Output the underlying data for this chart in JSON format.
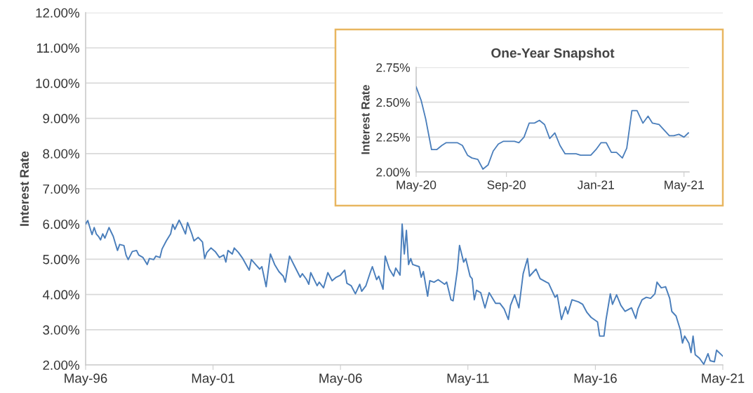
{
  "chart_data": [
    {
      "type": "line",
      "ylabel": "Interest Rate",
      "grid": "y",
      "marker": "none",
      "line_style": "solid",
      "xlim": [
        "1996-05",
        "2021-05"
      ],
      "ylim": [
        2,
        12
      ],
      "xticks": [
        {
          "value": "1996-05",
          "label": "May-96"
        },
        {
          "value": "2001-05",
          "label": "May-01"
        },
        {
          "value": "2006-05",
          "label": "May-06"
        },
        {
          "value": "2011-05",
          "label": "May-11"
        },
        {
          "value": "2016-05",
          "label": "May-16"
        },
        {
          "value": "2021-05",
          "label": "May-21"
        }
      ],
      "yticks": [
        {
          "value": 2,
          "label": "2.00%"
        },
        {
          "value": 3,
          "label": "3.00%"
        },
        {
          "value": 4,
          "label": "4.00%"
        },
        {
          "value": 5,
          "label": "5.00%"
        },
        {
          "value": 6,
          "label": "6.00%"
        },
        {
          "value": 7,
          "label": "7.00%"
        },
        {
          "value": 8,
          "label": "8.00%"
        },
        {
          "value": 9,
          "label": "9.00%"
        },
        {
          "value": 10,
          "label": "10.00%"
        },
        {
          "value": 11,
          "label": "11.00%"
        },
        {
          "value": 12,
          "label": "12.00%"
        }
      ],
      "x": [
        "1996-05",
        "1996-06",
        "1996-07",
        "1996-08",
        "1996-09",
        "1996-10",
        "1996-11",
        "1996-12",
        "1997-01",
        "1997-02",
        "1997-04",
        "1997-06",
        "1997-07",
        "1997-08",
        "1997-09",
        "1997-11",
        "1997-12",
        "1998-01",
        "1998-03",
        "1998-05",
        "1998-06",
        "1998-08",
        "1998-10",
        "1998-11",
        "1999-01",
        "1999-02",
        "1999-04",
        "1999-05",
        "1999-07",
        "1999-09",
        "1999-10",
        "1999-11",
        "2000-01",
        "2000-02",
        "2000-04",
        "2000-05",
        "2000-07",
        "2000-08",
        "2000-10",
        "2000-12",
        "2001-01",
        "2001-02",
        "2001-04",
        "2001-06",
        "2001-08",
        "2001-10",
        "2001-11",
        "2001-12",
        "2002-02",
        "2002-03",
        "2002-05",
        "2002-07",
        "2002-10",
        "2002-11",
        "2003-01",
        "2003-03",
        "2003-04",
        "2003-06",
        "2003-08",
        "2003-10",
        "2003-12",
        "2004-02",
        "2004-03",
        "2004-05",
        "2004-07",
        "2004-10",
        "2004-11",
        "2005-01",
        "2005-02",
        "2005-03",
        "2005-06",
        "2005-07",
        "2005-09",
        "2005-11",
        "2006-01",
        "2006-03",
        "2006-05",
        "2006-07",
        "2006-08",
        "2006-10",
        "2006-12",
        "2007-02",
        "2007-03",
        "2007-05",
        "2007-07",
        "2007-08",
        "2007-10",
        "2007-11",
        "2008-01",
        "2008-02",
        "2008-04",
        "2008-06",
        "2008-07",
        "2008-09",
        "2008-10",
        "2008-11",
        "2008-12",
        "2009-01",
        "2009-02",
        "2009-03",
        "2009-06",
        "2009-07",
        "2009-08",
        "2009-10",
        "2009-11",
        "2010-01",
        "2010-03",
        "2010-06",
        "2010-07",
        "2010-09",
        "2010-10",
        "2010-12",
        "2011-01",
        "2011-03",
        "2011-04",
        "2011-06",
        "2011-07",
        "2011-08",
        "2011-09",
        "2011-11",
        "2012-01",
        "2012-03",
        "2012-06",
        "2012-08",
        "2012-10",
        "2012-12",
        "2013-01",
        "2013-03",
        "2013-05",
        "2013-07",
        "2013-09",
        "2013-10",
        "2014-01",
        "2014-03",
        "2014-06",
        "2014-07",
        "2014-10",
        "2014-11",
        "2015-01",
        "2015-03",
        "2015-04",
        "2015-06",
        "2015-09",
        "2015-11",
        "2016-01",
        "2016-03",
        "2016-06",
        "2016-07",
        "2016-09",
        "2016-10",
        "2016-12",
        "2017-01",
        "2017-03",
        "2017-05",
        "2017-07",
        "2017-10",
        "2017-12",
        "2018-01",
        "2018-03",
        "2018-05",
        "2018-07",
        "2018-09",
        "2018-10",
        "2018-12",
        "2019-02",
        "2019-04",
        "2019-05",
        "2019-07",
        "2019-09",
        "2019-10",
        "2019-11",
        "2020-01",
        "2020-02",
        "2020-03",
        "2020-04",
        "2020-06",
        "2020-08",
        "2020-10",
        "2020-11",
        "2021-01",
        "2021-02",
        "2021-05"
      ],
      "series": [
        {
          "color": "#4a7ebb",
          "values": [
            6.0,
            6.1,
            5.9,
            5.7,
            5.9,
            5.72,
            5.65,
            5.55,
            5.72,
            5.6,
            5.9,
            5.65,
            5.45,
            5.25,
            5.42,
            5.39,
            5.12,
            4.99,
            5.22,
            5.25,
            5.12,
            5.05,
            4.85,
            5.02,
            4.99,
            5.09,
            5.05,
            5.29,
            5.52,
            5.72,
            5.99,
            5.85,
            6.11,
            5.99,
            5.72,
            6.04,
            5.72,
            5.52,
            5.62,
            5.49,
            5.02,
            5.19,
            5.32,
            5.22,
            5.05,
            5.12,
            4.92,
            5.25,
            5.15,
            5.32,
            5.19,
            5.02,
            4.69,
            4.99,
            4.85,
            4.72,
            4.79,
            4.22,
            5.15,
            4.85,
            4.65,
            4.52,
            4.35,
            5.09,
            4.85,
            4.49,
            4.59,
            4.42,
            4.29,
            4.62,
            4.25,
            4.35,
            4.19,
            4.62,
            4.39,
            4.49,
            4.55,
            4.69,
            4.32,
            4.25,
            4.02,
            4.29,
            4.09,
            4.25,
            4.62,
            4.79,
            4.42,
            4.52,
            4.15,
            5.09,
            4.72,
            4.52,
            4.75,
            4.55,
            6.0,
            5.15,
            5.82,
            4.85,
            5.02,
            4.85,
            4.79,
            4.49,
            4.65,
            3.95,
            4.39,
            4.35,
            4.42,
            4.29,
            4.35,
            3.85,
            3.82,
            4.69,
            5.39,
            4.92,
            5.02,
            4.52,
            4.45,
            3.85,
            4.12,
            4.05,
            3.62,
            4.05,
            3.75,
            3.75,
            3.59,
            3.29,
            3.69,
            3.99,
            3.62,
            4.59,
            5.02,
            4.52,
            4.72,
            4.45,
            4.35,
            4.32,
            3.92,
            3.99,
            3.29,
            3.65,
            3.45,
            3.85,
            3.79,
            3.72,
            3.49,
            3.35,
            3.22,
            2.82,
            2.82,
            3.29,
            4.02,
            3.72,
            3.99,
            3.69,
            3.52,
            3.62,
            3.32,
            3.59,
            3.85,
            3.92,
            3.89,
            4.02,
            4.35,
            4.19,
            4.22,
            3.89,
            3.52,
            3.39,
            2.99,
            2.62,
            2.82,
            2.62,
            2.35,
            2.82,
            2.29,
            2.19,
            2.02,
            2.32,
            2.12,
            2.09,
            2.42,
            2.25
          ]
        }
      ]
    },
    {
      "type": "line",
      "title": "One-Year Snapshot",
      "ylabel": "Interest Rate",
      "grid": "y",
      "marker": "none",
      "line_style": "solid",
      "xlim": [
        "2020-05-01",
        "2021-05-08"
      ],
      "ylim": [
        2,
        2.75
      ],
      "xticks": [
        {
          "value": "2020-05-01",
          "label": "May-20"
        },
        {
          "value": "2020-09-01",
          "label": "Sep-20"
        },
        {
          "value": "2021-01-01",
          "label": "Jan-21"
        },
        {
          "value": "2021-05-01",
          "label": "May-21"
        }
      ],
      "yticks": [
        {
          "value": 2,
          "label": "2.00%"
        },
        {
          "value": 2.25,
          "label": "2.25%"
        },
        {
          "value": 2.5,
          "label": "2.50%"
        },
        {
          "value": 2.75,
          "label": "2.75%"
        }
      ],
      "x": [
        "2020-05-01",
        "2020-05-08",
        "2020-05-14",
        "2020-05-22",
        "2020-05-29",
        "2020-06-05",
        "2020-06-11",
        "2020-06-20",
        "2020-06-26",
        "2020-07-03",
        "2020-07-10",
        "2020-07-16",
        "2020-07-24",
        "2020-07-31",
        "2020-08-07",
        "2020-08-14",
        "2020-08-21",
        "2020-08-28",
        "2020-09-03",
        "2020-09-12",
        "2020-09-18",
        "2020-09-25",
        "2020-10-02",
        "2020-10-09",
        "2020-10-16",
        "2020-10-23",
        "2020-10-30",
        "2020-11-06",
        "2020-11-13",
        "2020-11-20",
        "2020-11-28",
        "2020-12-05",
        "2020-12-11",
        "2020-12-18",
        "2020-12-25",
        "2021-01-01",
        "2021-01-08",
        "2021-01-15",
        "2021-01-22",
        "2021-01-29",
        "2021-02-06",
        "2021-02-12",
        "2021-02-19",
        "2021-02-26",
        "2021-03-06",
        "2021-03-13",
        "2021-03-19",
        "2021-03-28",
        "2021-04-04",
        "2021-04-11",
        "2021-04-17",
        "2021-04-24",
        "2021-05-01",
        "2021-05-07"
      ],
      "series": [
        {
          "color": "#4a7ebb",
          "values": [
            2.61,
            2.51,
            2.38,
            2.16,
            2.16,
            2.19,
            2.21,
            2.21,
            2.21,
            2.19,
            2.12,
            2.1,
            2.09,
            2.02,
            2.05,
            2.15,
            2.2,
            2.22,
            2.22,
            2.22,
            2.21,
            2.25,
            2.35,
            2.35,
            2.37,
            2.34,
            2.24,
            2.28,
            2.19,
            2.13,
            2.13,
            2.13,
            2.12,
            2.12,
            2.12,
            2.16,
            2.21,
            2.21,
            2.14,
            2.14,
            2.1,
            2.17,
            2.44,
            2.44,
            2.35,
            2.4,
            2.35,
            2.34,
            2.3,
            2.26,
            2.26,
            2.27,
            2.25,
            2.28
          ]
        }
      ]
    }
  ]
}
